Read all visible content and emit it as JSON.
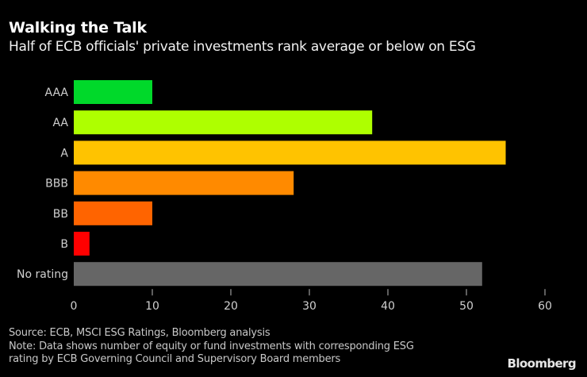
{
  "header": {
    "title": "Walking the Talk",
    "subtitle": "Half of ECB officials' private investments rank average or below on ESG"
  },
  "footer": {
    "source": "Source: ECB, MSCI ESG Ratings, Bloomberg analysis",
    "note_line1": "Note: Data shows number of equity or fund investments with corresponding ESG",
    "note_line2": "rating by ECB Governing Council and Supervisory Board members",
    "brand": "Bloomberg"
  },
  "chart_data": {
    "type": "bar",
    "orientation": "horizontal",
    "title": "Walking the Talk",
    "subtitle": "Half of ECB officials' private investments rank average or below on ESG",
    "xlabel": "",
    "ylabel": "",
    "categories": [
      "AAA",
      "AA",
      "A",
      "BBB",
      "BB",
      "B",
      "No rating"
    ],
    "values": [
      10,
      38,
      55,
      28,
      10,
      2,
      52
    ],
    "colors": [
      "#00d92a",
      "#aeff00",
      "#ffc300",
      "#ff8a00",
      "#ff6400",
      "#ff0000",
      "#666666"
    ],
    "xlim": [
      0,
      60
    ],
    "xticks": [
      0,
      10,
      20,
      30,
      40,
      50,
      60
    ],
    "grid": false,
    "legend": "none"
  }
}
